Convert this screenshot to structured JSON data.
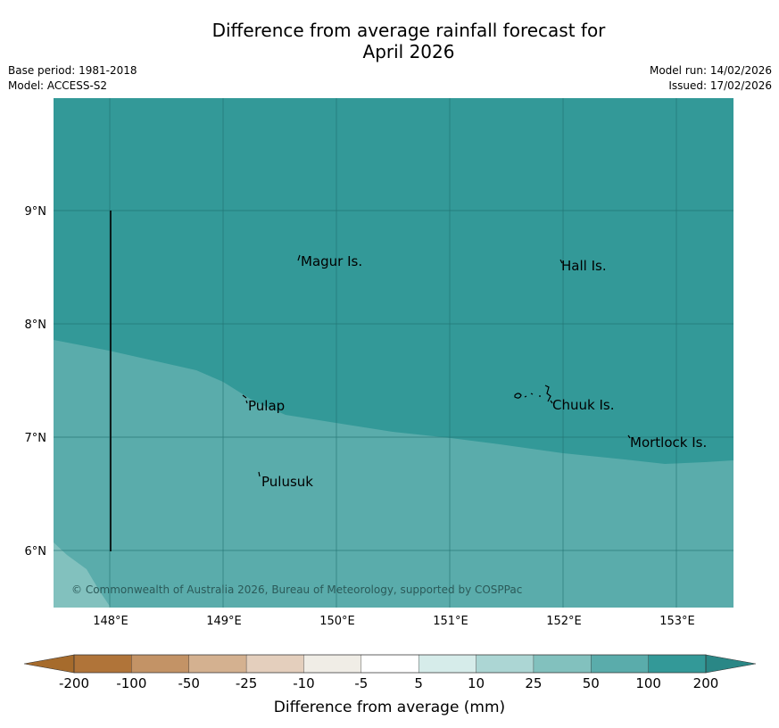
{
  "title_line1": "Difference from average rainfall forecast for",
  "title_line2": "April 2026",
  "base_period": "Base period: 1981-2018",
  "model": "Model: ACCESS-S2",
  "model_run": "Model run: 14/02/2026",
  "issued": "Issued: 17/02/2026",
  "copyright": "© Commonwealth of Australia 2026, Bureau of Meteorology, supported by COSPPac",
  "lon_labels": [
    "148°E",
    "149°E",
    "150°E",
    "151°E",
    "152°E",
    "153°E"
  ],
  "lat_labels": [
    "9°N",
    "8°N",
    "7°N",
    "6°N"
  ],
  "places": [
    {
      "name": "Magur Is.",
      "lon": 149.68,
      "lat": 8.57
    },
    {
      "name": "Hall Is.",
      "lon": 151.99,
      "lat": 8.53
    },
    {
      "name": "Pulap",
      "lon": 149.2,
      "lat": 7.32
    },
    {
      "name": "Chuuk Is.",
      "lon": 151.9,
      "lat": 7.33
    },
    {
      "name": "Mortlock Is.",
      "lon": 152.6,
      "lat": 6.98
    },
    {
      "name": "Pulusuk",
      "lon": 149.32,
      "lat": 6.65
    }
  ],
  "colorbar": {
    "label": "Difference from average (mm)",
    "ticks": [
      "-200",
      "-100",
      "-50",
      "-25",
      "-10",
      "-5",
      "5",
      "10",
      "25",
      "50",
      "100",
      "200"
    ],
    "colors": [
      "#a66b2c",
      "#b07439",
      "#c39366",
      "#d4b190",
      "#e4cfbd",
      "#f0ede6",
      "#ffffff",
      "#d6ecea",
      "#acd6d4",
      "#82c1be",
      "#5aacab",
      "#339998",
      "#2a8786"
    ]
  },
  "colors": {
    "band_100_200": "#339998",
    "band_50_100": "#5aacab",
    "band_25_50": "#82c1be",
    "grid": "#1f6e6c"
  }
}
